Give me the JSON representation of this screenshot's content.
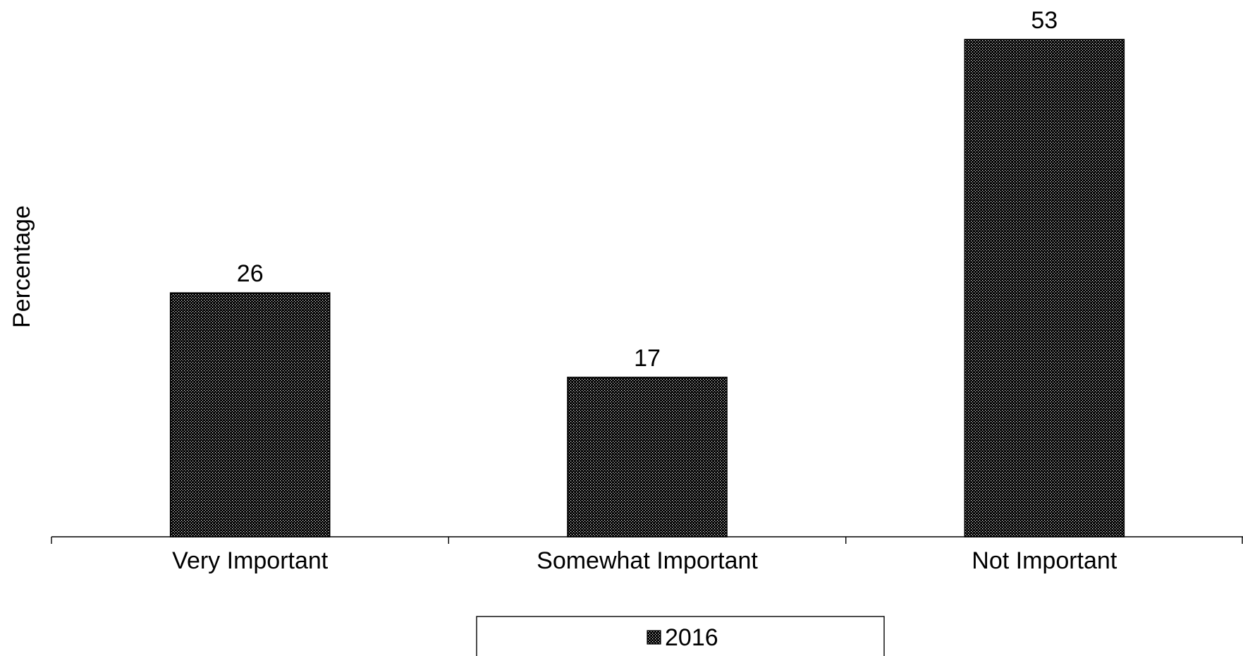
{
  "chart_data": {
    "type": "bar",
    "title": "",
    "xlabel": "",
    "ylabel": "Percentage",
    "categories": [
      "Very Important",
      "Somewhat Important",
      "Not Important"
    ],
    "series": [
      {
        "name": "2016",
        "values": [
          26,
          17,
          53
        ]
      }
    ],
    "ylim": [
      0,
      53
    ],
    "grid": false,
    "legend": {
      "position": "bottom",
      "entries": [
        "2016"
      ]
    },
    "data_labels": true,
    "colors": {
      "bar_fill": "#000000",
      "bar_dots": "#ffffff",
      "axis": "#000000"
    }
  }
}
